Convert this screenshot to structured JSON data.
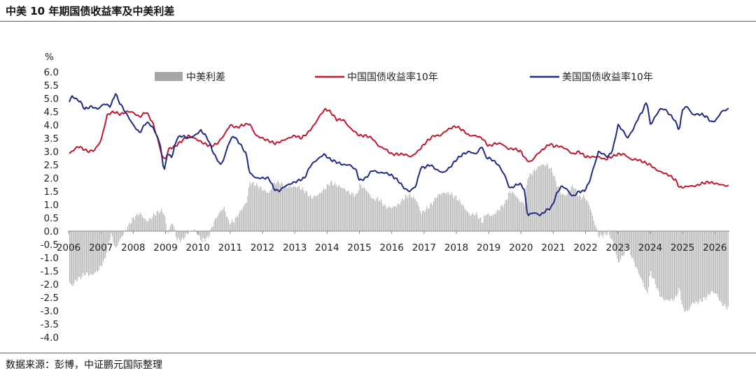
{
  "header": {
    "title": "中美 10 年期国债收益率及中美利差"
  },
  "footer": {
    "source": "数据来源：彭博，中证鹏元国际整理"
  },
  "colors": {
    "spread": "#a6a6a6",
    "china": "#c0192b",
    "us": "#1f2a85",
    "axis": "#888888"
  },
  "chart_data": {
    "type": "line",
    "title": "中美 10 年期国债收益率及中美利差",
    "ylabel": "%",
    "ylim": [
      -4.0,
      6.0
    ],
    "yticks": [
      "-4.0",
      "-3.5",
      "-3.0",
      "-2.5",
      "-2.0",
      "-1.5",
      "-1.0",
      "-0.5",
      "0.0",
      "0.5",
      "1.0",
      "1.5",
      "2.0",
      "2.5",
      "3.0",
      "3.5",
      "4.0",
      "4.5",
      "5.0",
      "5.5",
      "6.0"
    ],
    "xlim": [
      2006.0,
      2026.45
    ],
    "xticks": [
      "2006",
      "2007",
      "2008",
      "2009",
      "2010",
      "2011",
      "2012",
      "2013",
      "2014",
      "2015",
      "2016",
      "2017",
      "2018",
      "2019",
      "2020",
      "2021",
      "2022",
      "2023",
      "2024",
      "2025",
      "2026"
    ],
    "grid": false,
    "legend": {
      "position": "top",
      "entries": [
        "中美利差",
        "中国国债收益率10年",
        "美国国债收益率10年"
      ]
    },
    "series": [
      {
        "name": "中国国债收益率10年",
        "type": "line",
        "x": [
          2006.0,
          2006.15,
          2006.3,
          2006.45,
          2006.6,
          2006.8,
          2007.0,
          2007.2,
          2007.4,
          2007.6,
          2007.8,
          2007.95,
          2008.2,
          2008.4,
          2008.6,
          2008.75,
          2008.9,
          2009.0,
          2009.1,
          2009.3,
          2009.5,
          2009.7,
          2009.9,
          2010.2,
          2010.4,
          2010.6,
          2010.8,
          2011.0,
          2011.2,
          2011.4,
          2011.6,
          2011.8,
          2012.0,
          2012.2,
          2012.4,
          2012.6,
          2012.8,
          2013.0,
          2013.2,
          2013.4,
          2013.6,
          2013.8,
          2013.95,
          2014.1,
          2014.3,
          2014.5,
          2014.7,
          2014.9,
          2015.0,
          2015.2,
          2015.4,
          2015.6,
          2015.8,
          2016.0,
          2016.2,
          2016.4,
          2016.6,
          2016.8,
          2016.95,
          2017.1,
          2017.3,
          2017.5,
          2017.7,
          2017.85,
          2018.0,
          2018.2,
          2018.4,
          2018.6,
          2018.8,
          2019.0,
          2019.2,
          2019.4,
          2019.6,
          2019.8,
          2020.0,
          2020.15,
          2020.3,
          2020.5,
          2020.7,
          2020.9,
          2021.0,
          2021.2,
          2021.4,
          2021.6,
          2021.8,
          2022.0,
          2022.2,
          2022.4,
          2022.6,
          2022.8,
          2023.0,
          2023.2,
          2023.4,
          2023.6,
          2023.8,
          2024.0,
          2024.2,
          2024.4,
          2024.6,
          2024.8,
          2024.9,
          2025.0,
          2025.2,
          2025.4,
          2025.6,
          2025.8,
          2026.0,
          2026.2,
          2026.4
        ],
        "y": [
          2.9,
          3.05,
          3.2,
          3.1,
          3.0,
          3.05,
          3.4,
          4.4,
          4.5,
          4.4,
          4.5,
          4.5,
          4.3,
          4.5,
          4.1,
          3.5,
          2.8,
          2.7,
          3.1,
          3.2,
          3.4,
          3.6,
          3.5,
          3.3,
          3.2,
          3.3,
          3.6,
          4.0,
          3.9,
          4.0,
          4.05,
          3.6,
          3.5,
          3.4,
          3.3,
          3.4,
          3.5,
          3.6,
          3.5,
          3.7,
          4.0,
          4.4,
          4.6,
          4.5,
          4.2,
          4.2,
          3.9,
          3.7,
          3.6,
          3.6,
          3.5,
          3.2,
          3.1,
          2.9,
          2.9,
          2.9,
          2.8,
          3.0,
          3.2,
          3.4,
          3.6,
          3.6,
          3.8,
          3.9,
          3.95,
          3.8,
          3.6,
          3.6,
          3.5,
          3.2,
          3.3,
          3.3,
          3.1,
          3.1,
          3.0,
          2.7,
          2.6,
          2.9,
          3.1,
          3.3,
          3.2,
          3.2,
          3.1,
          2.9,
          3.0,
          2.8,
          2.8,
          2.8,
          2.7,
          2.8,
          2.9,
          2.9,
          2.7,
          2.7,
          2.6,
          2.5,
          2.3,
          2.2,
          2.1,
          1.9,
          1.65,
          1.65,
          1.7,
          1.7,
          1.8,
          1.85,
          1.8,
          1.75,
          1.7
        ]
      },
      {
        "name": "美国国债收益率10年",
        "type": "line",
        "x": [
          2006.0,
          2006.1,
          2006.2,
          2006.35,
          2006.5,
          2006.7,
          2006.9,
          2007.1,
          2007.3,
          2007.45,
          2007.55,
          2007.7,
          2007.85,
          2008.0,
          2008.2,
          2008.4,
          2008.55,
          2008.7,
          2008.85,
          2008.95,
          2009.05,
          2009.2,
          2009.35,
          2009.5,
          2009.7,
          2009.9,
          2010.1,
          2010.3,
          2010.5,
          2010.7,
          2010.8,
          2010.95,
          2011.1,
          2011.3,
          2011.5,
          2011.6,
          2011.8,
          2012.0,
          2012.2,
          2012.35,
          2012.5,
          2012.7,
          2012.9,
          2013.1,
          2013.3,
          2013.5,
          2013.7,
          2013.9,
          2014.1,
          2014.3,
          2014.5,
          2014.7,
          2014.9,
          2015.0,
          2015.2,
          2015.4,
          2015.6,
          2015.8,
          2016.0,
          2016.2,
          2016.4,
          2016.55,
          2016.75,
          2016.9,
          2017.0,
          2017.2,
          2017.4,
          2017.6,
          2017.8,
          2018.0,
          2018.2,
          2018.4,
          2018.6,
          2018.8,
          2018.9,
          2019.1,
          2019.3,
          2019.5,
          2019.65,
          2019.8,
          2019.95,
          2020.1,
          2020.2,
          2020.4,
          2020.6,
          2020.8,
          2020.95,
          2021.1,
          2021.25,
          2021.4,
          2021.6,
          2021.8,
          2021.95,
          2022.1,
          2022.25,
          2022.4,
          2022.55,
          2022.7,
          2022.85,
          2023.0,
          2023.15,
          2023.3,
          2023.5,
          2023.6,
          2023.75,
          2023.9,
          2024.0,
          2024.15,
          2024.3,
          2024.45,
          2024.6,
          2024.75,
          2024.9,
          2025.0,
          2025.15,
          2025.3,
          2025.45,
          2025.6,
          2025.75,
          2025.9,
          2026.05,
          2026.2,
          2026.4
        ],
        "y": [
          4.8,
          5.1,
          5.0,
          4.9,
          4.6,
          4.7,
          4.6,
          4.8,
          4.7,
          5.2,
          4.9,
          4.6,
          4.3,
          4.0,
          3.7,
          4.1,
          4.0,
          3.7,
          3.2,
          2.2,
          2.9,
          2.8,
          3.5,
          3.6,
          3.5,
          3.6,
          3.8,
          3.5,
          2.9,
          2.5,
          2.7,
          3.3,
          3.6,
          3.3,
          2.9,
          2.2,
          2.0,
          2.0,
          2.0,
          1.6,
          1.5,
          1.7,
          1.8,
          1.9,
          2.0,
          2.5,
          2.7,
          2.9,
          2.7,
          2.6,
          2.5,
          2.5,
          2.3,
          1.9,
          2.0,
          2.3,
          2.2,
          2.2,
          2.1,
          1.9,
          1.6,
          1.5,
          1.7,
          2.4,
          2.4,
          2.5,
          2.3,
          2.2,
          2.4,
          2.7,
          2.9,
          3.0,
          2.9,
          3.2,
          2.8,
          2.7,
          2.5,
          2.1,
          1.6,
          1.7,
          1.8,
          1.6,
          0.6,
          0.7,
          0.6,
          0.8,
          0.9,
          1.4,
          1.7,
          1.6,
          1.3,
          1.5,
          1.5,
          1.8,
          2.4,
          3.0,
          2.9,
          2.8,
          3.1,
          4.0,
          3.8,
          3.5,
          3.9,
          4.2,
          4.5,
          4.9,
          4.0,
          4.3,
          4.6,
          4.6,
          4.4,
          4.2,
          3.8,
          4.6,
          4.7,
          4.4,
          4.4,
          4.4,
          4.3,
          4.1,
          4.2,
          4.5,
          4.6
        ]
      },
      {
        "name": "中美利差",
        "type": "bar",
        "x": [
          2006.0,
          2006.1,
          2006.2,
          2006.35,
          2006.5,
          2006.7,
          2006.9,
          2007.1,
          2007.3,
          2007.45,
          2007.55,
          2007.7,
          2007.85,
          2008.0,
          2008.2,
          2008.4,
          2008.55,
          2008.7,
          2008.85,
          2008.95,
          2009.05,
          2009.2,
          2009.35,
          2009.5,
          2009.7,
          2009.9,
          2010.1,
          2010.3,
          2010.5,
          2010.7,
          2010.8,
          2010.95,
          2011.1,
          2011.3,
          2011.5,
          2011.6,
          2011.8,
          2012.0,
          2012.2,
          2012.35,
          2012.5,
          2012.7,
          2012.9,
          2013.1,
          2013.3,
          2013.5,
          2013.7,
          2013.9,
          2014.1,
          2014.3,
          2014.5,
          2014.7,
          2014.9,
          2015.0,
          2015.2,
          2015.4,
          2015.6,
          2015.8,
          2016.0,
          2016.2,
          2016.4,
          2016.55,
          2016.75,
          2016.9,
          2017.0,
          2017.2,
          2017.4,
          2017.6,
          2017.8,
          2018.0,
          2018.2,
          2018.4,
          2018.6,
          2018.8,
          2018.9,
          2019.1,
          2019.3,
          2019.5,
          2019.65,
          2019.8,
          2019.95,
          2020.1,
          2020.2,
          2020.4,
          2020.6,
          2020.8,
          2020.95,
          2021.1,
          2021.25,
          2021.4,
          2021.6,
          2021.8,
          2021.95,
          2022.1,
          2022.25,
          2022.4,
          2022.55,
          2022.7,
          2022.85,
          2023.0,
          2023.15,
          2023.3,
          2023.5,
          2023.6,
          2023.75,
          2023.9,
          2024.0,
          2024.15,
          2024.3,
          2024.45,
          2024.6,
          2024.75,
          2024.9,
          2025.0,
          2025.15,
          2025.3,
          2025.45,
          2025.6,
          2025.75,
          2025.9,
          2026.05,
          2026.2,
          2026.4
        ],
        "y": [
          -1.9,
          -2.07,
          -1.87,
          -1.75,
          -1.6,
          -1.66,
          -1.49,
          -1.1,
          -0.1,
          -0.68,
          -0.38,
          -0.08,
          0.22,
          0.5,
          0.69,
          0.36,
          0.5,
          0.68,
          0.78,
          0.69,
          -0.12,
          0.36,
          -0.32,
          -0.34,
          -0.05,
          0.05,
          -0.34,
          -0.26,
          0.37,
          0.77,
          0.89,
          0.33,
          0.36,
          0.74,
          1.1,
          1.84,
          1.74,
          1.57,
          1.42,
          1.82,
          1.85,
          1.67,
          1.67,
          1.67,
          1.52,
          1.26,
          1.36,
          1.57,
          1.84,
          1.72,
          1.61,
          1.43,
          1.34,
          1.74,
          1.56,
          1.2,
          1.21,
          0.91,
          0.89,
          1.0,
          1.28,
          1.36,
          1.18,
          0.69,
          0.77,
          0.98,
          1.34,
          1.45,
          1.42,
          1.25,
          0.96,
          0.61,
          0.66,
          0.33,
          0.66,
          0.57,
          0.8,
          1.08,
          1.5,
          1.4,
          1.13,
          1.03,
          2.03,
          2.27,
          2.5,
          2.5,
          2.29,
          1.76,
          1.38,
          1.35,
          1.73,
          1.27,
          1.3,
          1.0,
          0.38,
          -0.2,
          -0.15,
          -0.06,
          -0.45,
          -1.2,
          -0.9,
          -0.6,
          -1.2,
          -1.5,
          -1.9,
          -2.4,
          -1.53,
          -1.98,
          -2.45,
          -2.6,
          -2.6,
          -2.57,
          -2.16,
          -2.95,
          -3.03,
          -2.7,
          -2.7,
          -2.6,
          -2.47,
          -2.27,
          -2.38,
          -2.75,
          -2.9
        ]
      }
    ]
  }
}
